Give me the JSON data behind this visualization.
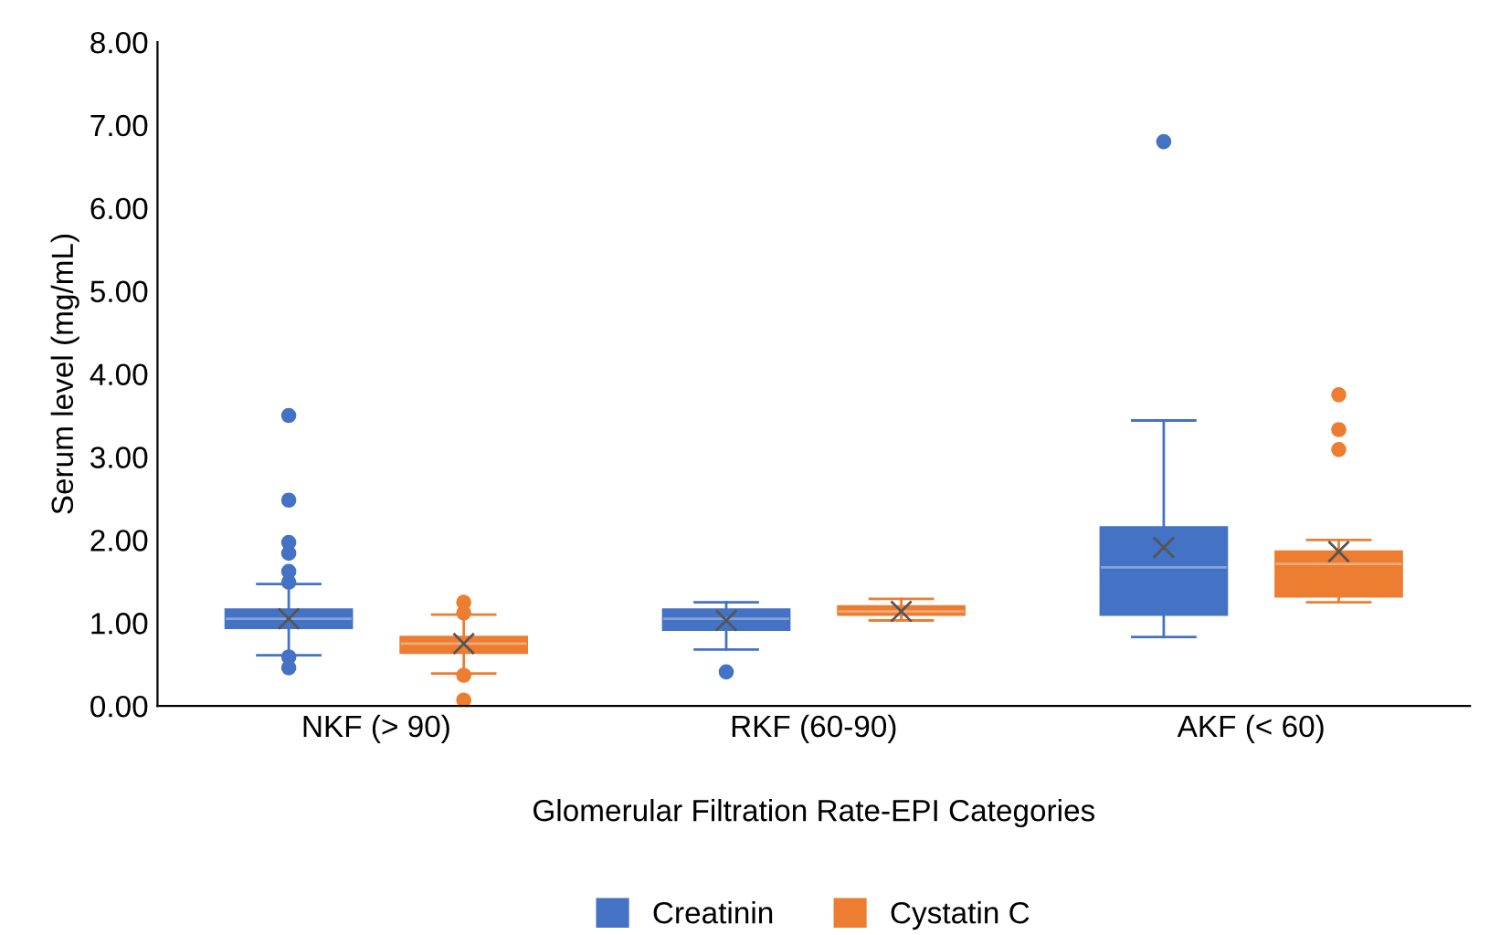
{
  "chart_data": {
    "type": "box",
    "xlabel": "Glomerular Filtration Rate-EPI Categories",
    "ylabel": "Serum level (mg/mL)",
    "categories": [
      "NKF (> 90)",
      "RKF (60-90)",
      "AKF (< 60)"
    ],
    "ylim": [
      0,
      8
    ],
    "yticks": [
      {
        "value": 0,
        "label": "0.00"
      },
      {
        "value": 1,
        "label": "1.00"
      },
      {
        "value": 2,
        "label": "2.00"
      },
      {
        "value": 3,
        "label": "3.00"
      },
      {
        "value": 4,
        "label": "4.00"
      },
      {
        "value": 5,
        "label": "5.00"
      },
      {
        "value": 6,
        "label": "6.00"
      },
      {
        "value": 7,
        "label": "7.00"
      },
      {
        "value": 8,
        "label": "8.00"
      }
    ],
    "grid": false,
    "legend": "bottom",
    "series": [
      {
        "name": "Creatinin",
        "color": "#4472c4",
        "boxes": [
          {
            "low": 0.61,
            "q1": 0.94,
            "median": 1.05,
            "q3": 1.16,
            "high": 1.47,
            "mean": 1.05,
            "outliers": [
              3.5,
              2.48,
              1.97,
              1.84,
              1.62,
              1.49,
              0.59,
              0.46
            ]
          },
          {
            "low": 0.68,
            "q1": 0.92,
            "median": 1.05,
            "q3": 1.16,
            "high": 1.25,
            "mean": 1.03,
            "outliers": [
              0.41
            ]
          },
          {
            "low": 0.83,
            "q1": 1.1,
            "median": 1.67,
            "q3": 2.15,
            "high": 3.44,
            "mean": 1.91,
            "outliers": [
              6.8
            ]
          }
        ]
      },
      {
        "name": "Cystatin C",
        "color": "#ed7d31",
        "boxes": [
          {
            "low": 0.39,
            "q1": 0.64,
            "median": 0.75,
            "q3": 0.83,
            "high": 1.1,
            "mean": 0.75,
            "outliers": [
              1.25,
              1.12,
              0.37,
              0.07
            ]
          },
          {
            "low": 1.03,
            "q1": 1.1,
            "median": 1.14,
            "q3": 1.2,
            "high": 1.29,
            "mean": 1.14
          },
          {
            "low": 1.25,
            "q1": 1.32,
            "median": 1.71,
            "q3": 1.86,
            "high": 2.0,
            "mean": 1.86,
            "outliers": [
              3.75,
              3.33,
              3.09
            ]
          }
        ]
      }
    ]
  }
}
